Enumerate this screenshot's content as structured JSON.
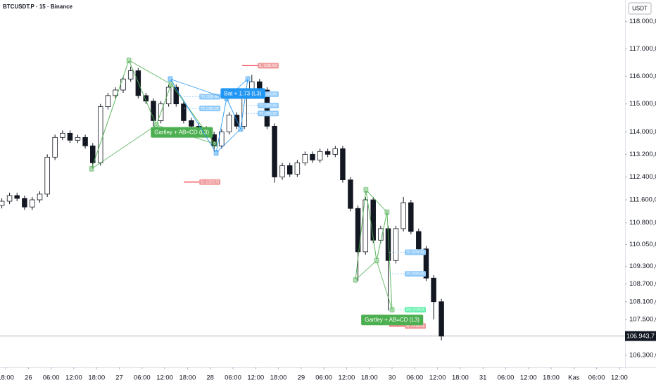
{
  "chart_data": {
    "type": "candlestick",
    "title": "BTCUSDT.P · 15 · Binance",
    "currency": "USDT",
    "log_scale": true,
    "grid": false,
    "candle_color": "#131722",
    "xlim": [
      -0.25,
      27.25
    ],
    "xticks": [
      {
        "value": 0,
        "label": "18:00"
      },
      {
        "value": 1,
        "label": "26"
      },
      {
        "value": 2,
        "label": "06:00"
      },
      {
        "value": 3,
        "label": "12:00"
      },
      {
        "value": 4,
        "label": "18:00"
      },
      {
        "value": 5,
        "label": "27"
      },
      {
        "value": 6,
        "label": "06:00"
      },
      {
        "value": 7,
        "label": "12:00"
      },
      {
        "value": 8,
        "label": "18:00"
      },
      {
        "value": 9,
        "label": "28"
      },
      {
        "value": 10,
        "label": "06:00"
      },
      {
        "value": 11,
        "label": "12:00"
      },
      {
        "value": 12,
        "label": "18:00"
      },
      {
        "value": 13,
        "label": "29"
      },
      {
        "value": 14,
        "label": "06:00"
      },
      {
        "value": 15,
        "label": "12:00"
      },
      {
        "value": 16,
        "label": "18:00"
      },
      {
        "value": 17,
        "label": "30"
      },
      {
        "value": 18,
        "label": "06:00"
      },
      {
        "value": 19,
        "label": "12:00"
      },
      {
        "value": 20,
        "label": "18:00"
      },
      {
        "value": 21,
        "label": "31"
      },
      {
        "value": 22,
        "label": "06:00"
      },
      {
        "value": 23,
        "label": "12:00"
      },
      {
        "value": 24,
        "label": "18:00"
      },
      {
        "value": 25,
        "label": "Kas"
      },
      {
        "value": 26,
        "label": "06:00"
      },
      {
        "value": 27,
        "label": "12:00"
      }
    ],
    "ylim": [
      105950,
      118800
    ],
    "yticks": [
      {
        "value": 118000,
        "label": "118.000,0"
      },
      {
        "value": 117000,
        "label": "117.000,0"
      },
      {
        "value": 116000,
        "label": "116.000,0"
      },
      {
        "value": 115000,
        "label": "115.000,0"
      },
      {
        "value": 114000,
        "label": "114.000,0"
      },
      {
        "value": 113200,
        "label": "113.200,0"
      },
      {
        "value": 112400,
        "label": "112.400,0"
      },
      {
        "value": 111600,
        "label": "111.600,0"
      },
      {
        "value": 110800,
        "label": "110.800,0"
      },
      {
        "value": 110050,
        "label": "110.050,0"
      },
      {
        "value": 109300,
        "label": "109.300,0"
      },
      {
        "value": 108700,
        "label": "108.700,0"
      },
      {
        "value": 108100,
        "label": "108.100,0"
      },
      {
        "value": 107500,
        "label": "107.500,0"
      },
      {
        "value": 106300,
        "label": "106.300,0"
      }
    ],
    "last_price": {
      "value": 106943.7,
      "label": "106.943,7"
    },
    "x": [
      -0.17,
      0.17,
      0.5,
      0.83,
      1.17,
      1.5,
      1.83,
      2.17,
      2.5,
      2.83,
      3.17,
      3.5,
      3.83,
      4.17,
      4.5,
      4.83,
      5.17,
      5.5,
      5.83,
      6.17,
      6.5,
      6.83,
      7.17,
      7.5,
      7.83,
      8.17,
      8.5,
      8.83,
      9.17,
      9.5,
      9.83,
      10.17,
      10.5,
      10.83,
      11.17,
      11.5,
      11.83,
      12.17,
      12.5,
      12.83,
      13.17,
      13.5,
      13.83,
      14.17,
      14.5,
      14.83,
      15.17,
      15.5,
      15.83,
      16.17,
      16.5,
      16.83,
      17.17,
      17.5,
      17.83,
      18.17,
      18.5,
      18.83,
      19.17
    ],
    "open": [
      111400,
      111550,
      111750,
      111650,
      111350,
      111600,
      111800,
      113100,
      113800,
      113950,
      113700,
      113800,
      113500,
      112900,
      114900,
      115300,
      115500,
      115900,
      116200,
      115300,
      115100,
      114400,
      115000,
      115600,
      115000,
      114400,
      114200,
      114100,
      113900,
      113500,
      114000,
      114600,
      114200,
      115300,
      115800,
      115500,
      114200,
      112400,
      112800,
      112500,
      112900,
      113200,
      113000,
      113300,
      113200,
      113400,
      112300,
      111300,
      109800,
      111600,
      110200,
      110600,
      109500,
      110600,
      111500,
      110500,
      109900,
      108900,
      108100
    ],
    "high": [
      111650,
      111850,
      111850,
      111750,
      111700,
      111900,
      113200,
      113900,
      114050,
      114050,
      113900,
      113900,
      113600,
      115000,
      115400,
      115600,
      116000,
      116350,
      116300,
      115400,
      115200,
      115100,
      115700,
      115700,
      115100,
      114500,
      114300,
      114200,
      114000,
      114100,
      114700,
      114700,
      115400,
      116050,
      115900,
      115600,
      114300,
      112900,
      112900,
      113000,
      113300,
      113300,
      113400,
      113400,
      113500,
      113500,
      112400,
      111400,
      111700,
      111700,
      110700,
      110700,
      110700,
      111700,
      111600,
      110600,
      110000,
      109000,
      108200
    ],
    "low": [
      111300,
      111450,
      111550,
      111250,
      111250,
      111500,
      111700,
      113000,
      113700,
      113600,
      113600,
      113400,
      112700,
      112800,
      114800,
      115200,
      115400,
      115800,
      115200,
      115000,
      114200,
      114300,
      114900,
      114900,
      114300,
      114100,
      114000,
      113800,
      113300,
      113400,
      113900,
      114100,
      114100,
      115200,
      115400,
      114100,
      112200,
      112300,
      112400,
      112400,
      112800,
      112900,
      112900,
      113100,
      113100,
      112200,
      111200,
      108800,
      109700,
      110100,
      110100,
      107800,
      109400,
      110500,
      110400,
      109800,
      108800,
      107500,
      106800
    ],
    "close": [
      111550,
      111750,
      111650,
      111350,
      111600,
      111800,
      113100,
      113800,
      113950,
      113700,
      113800,
      113500,
      112900,
      114900,
      115300,
      115500,
      115900,
      116200,
      115300,
      115100,
      114400,
      115000,
      115600,
      115000,
      114400,
      114200,
      114100,
      113900,
      113500,
      114000,
      114600,
      114200,
      115300,
      115800,
      115500,
      114200,
      112400,
      112800,
      112500,
      112900,
      113200,
      113000,
      113300,
      113200,
      113400,
      112300,
      111300,
      109800,
      111600,
      110200,
      110600,
      109500,
      110600,
      111500,
      110500,
      109900,
      108900,
      108100,
      106940
    ],
    "patterns": [
      {
        "name": "Gartley + AB=CD (L3)",
        "color": "#4caf50",
        "points": [
          {
            "label": "X",
            "x": 3.78,
            "y": 112690
          },
          {
            "label": "A",
            "x": 5.42,
            "y": 116580
          },
          {
            "label": "B",
            "x": 6.63,
            "y": 114240
          },
          {
            "label": "C",
            "x": 7.28,
            "y": 115710
          },
          {
            "label": "D",
            "x": 9.2,
            "y": 113570
          }
        ],
        "levels": [
          {
            "label": "TP1: 115256.4000",
            "value": 115256.4,
            "kind": "tp"
          },
          {
            "label": "TP2: 114836.1200",
            "value": 114836.12,
            "kind": "tp"
          },
          {
            "label": "SL: 112222.70",
            "value": 112222.7,
            "kind": "sl"
          }
        ]
      },
      {
        "name": "Bat + 1.73 (L3)",
        "color": "#2196f3",
        "points": [
          {
            "label": "X",
            "x": 7.24,
            "y": 115900
          },
          {
            "label": "A",
            "x": 9.26,
            "y": 113250
          },
          {
            "label": "B",
            "x": 9.72,
            "y": 115200
          },
          {
            "label": "C",
            "x": 10.34,
            "y": 114100
          },
          {
            "label": "D",
            "x": 10.65,
            "y": 115900
          }
        ],
        "levels": [
          {
            "label": "SL: 116382.4669",
            "value": 116382.4669,
            "kind": "sl"
          },
          {
            "label": "TP1: 115350.8000",
            "value": 115350.8,
            "kind": "tp"
          },
          {
            "label": "TP2: 114940.2000",
            "value": 114940.2,
            "kind": "tp"
          },
          {
            "label": "TP3: 114655.3000",
            "value": 114655.3,
            "kind": "tp"
          }
        ]
      },
      {
        "name": "Gartley + AB=CD (L3)",
        "color": "#4caf50",
        "points": [
          {
            "label": "X",
            "x": 15.39,
            "y": 108840
          },
          {
            "label": "A",
            "x": 15.85,
            "y": 111950
          },
          {
            "label": "B",
            "x": 16.32,
            "y": 109500
          },
          {
            "label": "C",
            "x": 16.78,
            "y": 111170
          },
          {
            "label": "D",
            "x": 17.0,
            "y": 107830
          }
        ],
        "levels": [
          {
            "label": "TP1: 109784.1000",
            "value": 109784.1,
            "kind": "tp"
          },
          {
            "label": "TP2: 109048.3000",
            "value": 109048.3,
            "kind": "tp"
          },
          {
            "label": "Entry: 107830.00",
            "value": 107830,
            "kind": "entry"
          },
          {
            "label": "SL: 107280.50",
            "value": 107280.5,
            "kind": "sl"
          }
        ]
      }
    ]
  }
}
